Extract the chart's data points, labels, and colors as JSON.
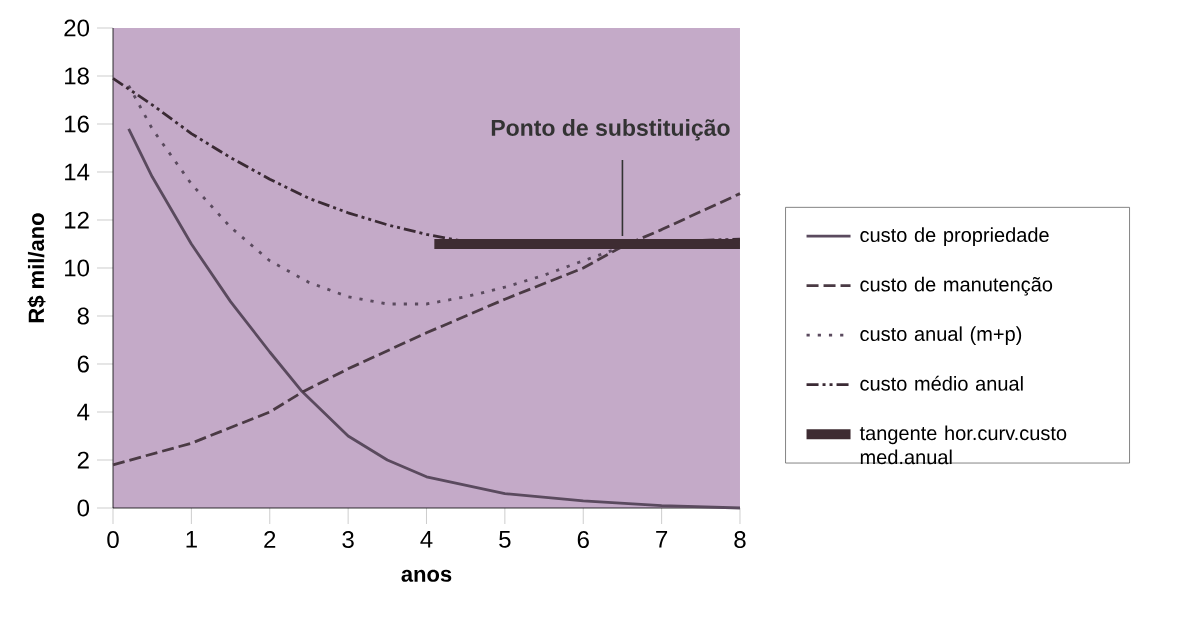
{
  "chart_data": {
    "type": "line",
    "xlabel": "anos",
    "ylabel": "R$ mil/ano",
    "xlim": [
      0,
      8
    ],
    "ylim": [
      0,
      20
    ],
    "xticks": [
      0,
      1,
      2,
      3,
      4,
      5,
      6,
      7,
      8
    ],
    "yticks": [
      0,
      2,
      4,
      6,
      8,
      10,
      12,
      14,
      16,
      18,
      20
    ],
    "grid": false,
    "legend": "right",
    "marker": "none",
    "series": [
      {
        "name": "custo de propriedade",
        "color": "#5a4a5e",
        "line_style": "solid",
        "x": [
          0.2,
          0.5,
          1,
          1.5,
          2,
          2.4,
          3,
          3.5,
          4,
          5,
          6,
          7,
          8
        ],
        "values": [
          15.8,
          13.8,
          11.0,
          8.6,
          6.5,
          4.9,
          3.0,
          2.0,
          1.3,
          0.6,
          0.3,
          0.1,
          0
        ]
      },
      {
        "name": "custo de manutenção",
        "color": "#4a3a44",
        "line_style": "dashed",
        "x": [
          0,
          1,
          2,
          2.4,
          3,
          4,
          5,
          6,
          6.5,
          7,
          8
        ],
        "values": [
          1.8,
          2.7,
          4.0,
          4.8,
          5.8,
          7.3,
          8.7,
          10.0,
          10.9,
          11.6,
          13.1
        ]
      },
      {
        "name": "custo anual (m+p)",
        "color": "#5a4a5e",
        "line_style": "dotted",
        "x": [
          0.2,
          0.5,
          1,
          1.5,
          2,
          2.5,
          3,
          3.5,
          4,
          4.5,
          5,
          5.5,
          6,
          6.6
        ],
        "values": [
          17.6,
          15.8,
          13.5,
          11.7,
          10.3,
          9.4,
          8.8,
          8.5,
          8.5,
          8.8,
          9.2,
          9.7,
          10.3,
          11.0
        ]
      },
      {
        "name": "custo médio anual",
        "color": "#3a2a34",
        "line_style": "dashdotdotted",
        "x": [
          0,
          0.5,
          1,
          1.5,
          2,
          2.5,
          3,
          3.5,
          4,
          4.5,
          5,
          6,
          7,
          8
        ],
        "values": [
          17.9,
          16.8,
          15.6,
          14.6,
          13.7,
          12.9,
          12.3,
          11.8,
          11.4,
          11.1,
          11.0,
          11.0,
          11.1,
          11.2
        ]
      },
      {
        "name": "tangente hor.curv.custo med.anual",
        "color": "#3e2c32",
        "line_style": "solid",
        "x": [
          4.1,
          8
        ],
        "values": [
          11.0,
          11.0
        ]
      }
    ],
    "annotations": [
      {
        "text": "Ponto de substituição",
        "x": 6.5,
        "y": 11
      }
    ]
  }
}
